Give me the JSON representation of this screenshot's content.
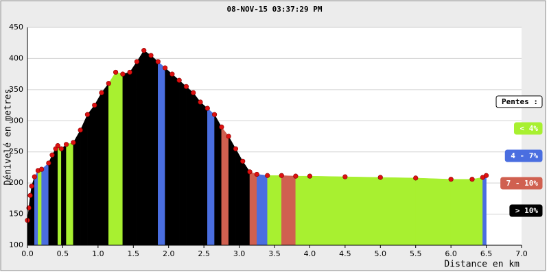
{
  "chart_data": {
    "type": "elevation",
    "title": "08-NOV-15 03:37:29 PM",
    "y_label": "Dénivelé en metres",
    "x_label": "Distance en km",
    "legend_title": "Pentes :",
    "classes": [
      {
        "name": "< 4%",
        "color": "#a8f030"
      },
      {
        "name": "4 - 7%",
        "color": "#4a6ee0"
      },
      {
        "name": "7 - 10%",
        "color": "#d06050"
      },
      {
        "name": "> 10%",
        "color": "#000000"
      }
    ],
    "point_color": "#dd1111",
    "x": [
      0.0,
      0.02,
      0.04,
      0.06,
      0.1,
      0.15,
      0.2,
      0.3,
      0.35,
      0.4,
      0.43,
      0.48,
      0.55,
      0.65,
      0.75,
      0.85,
      0.95,
      1.05,
      1.15,
      1.25,
      1.35,
      1.45,
      1.55,
      1.65,
      1.75,
      1.85,
      1.95,
      2.05,
      2.15,
      2.25,
      2.35,
      2.45,
      2.55,
      2.65,
      2.75,
      2.85,
      2.95,
      3.05,
      3.15,
      3.25,
      3.4,
      3.6,
      3.8,
      4.0,
      4.5,
      5.0,
      5.5,
      6.0,
      6.3,
      6.45,
      6.5
    ],
    "values": [
      140,
      160,
      180,
      195,
      210,
      220,
      222,
      232,
      245,
      255,
      260,
      255,
      262,
      265,
      285,
      310,
      325,
      345,
      360,
      378,
      375,
      378,
      395,
      413,
      405,
      395,
      385,
      375,
      365,
      355,
      345,
      330,
      320,
      310,
      290,
      275,
      255,
      235,
      218,
      214,
      212,
      212,
      211,
      211,
      210,
      209,
      208,
      206,
      206,
      209,
      212
    ],
    "segment_class": [
      3,
      3,
      3,
      3,
      1,
      0,
      1,
      3,
      3,
      3,
      0,
      3,
      0,
      3,
      3,
      3,
      3,
      3,
      0,
      0,
      3,
      3,
      3,
      3,
      3,
      1,
      3,
      3,
      3,
      3,
      3,
      3,
      1,
      3,
      2,
      3,
      3,
      3,
      2,
      1,
      0,
      2,
      0,
      0,
      0,
      0,
      0,
      0,
      0,
      1
    ],
    "xlim": [
      0,
      7
    ],
    "xticks": [
      {
        "value": 0,
        "label": "0.0"
      },
      0.5,
      {
        "value": 1,
        "label": "1.0"
      },
      1.5,
      {
        "value": 2,
        "label": "2.0"
      },
      2.5,
      {
        "value": 3,
        "label": "3.0"
      },
      3.5,
      {
        "value": 4,
        "label": "4.0"
      },
      4.5,
      {
        "value": 5,
        "label": "5.0"
      },
      5.5,
      {
        "value": 6,
        "label": "6.0"
      },
      6.5,
      {
        "value": 7,
        "label": "7.0"
      }
    ],
    "ylim": [
      100,
      450
    ],
    "yticks": [
      100,
      150,
      200,
      250,
      300,
      350,
      400,
      450
    ],
    "grid": true
  }
}
